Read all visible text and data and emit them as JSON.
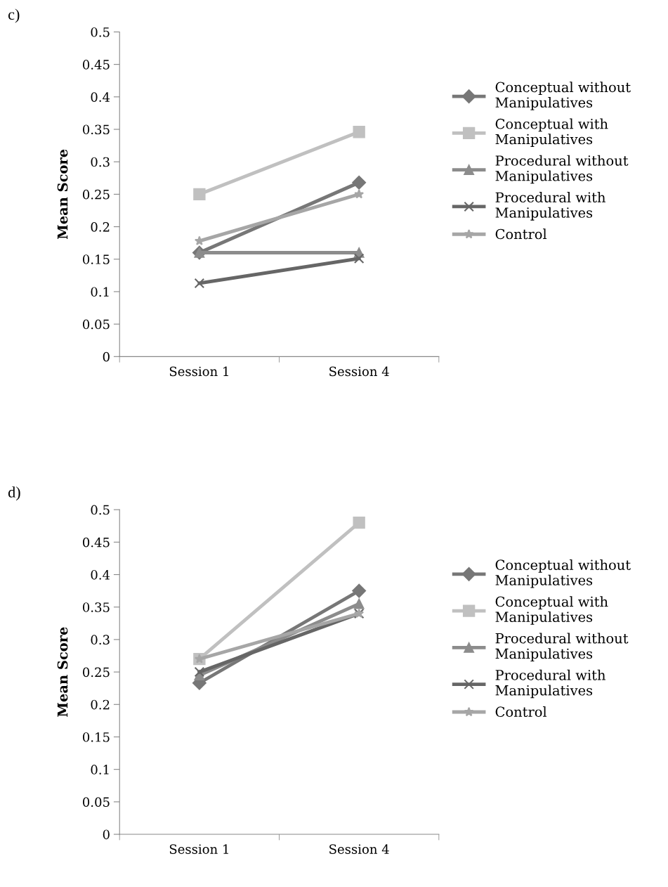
{
  "chart_data": [
    {
      "type": "line",
      "title": "c)",
      "ylabel": "Mean Score",
      "categories": [
        "Session 1",
        "Session 4"
      ],
      "ylim": [
        0,
        0.5
      ],
      "yticks": [
        0,
        0.05,
        0.1,
        0.15,
        0.2,
        0.25,
        0.3,
        0.35,
        0.4,
        0.45,
        0.5
      ],
      "grid": false,
      "legend": "right",
      "line_style": "solid",
      "series": [
        {
          "name": "Conceptual without Manipulatives",
          "color": "#777777",
          "marker": "diamond",
          "values": [
            0.16,
            0.268
          ]
        },
        {
          "name": "Conceptual with Manipulatives",
          "color": "#c0c0c0",
          "marker": "square",
          "values": [
            0.25,
            0.346
          ]
        },
        {
          "name": "Procedural without Manipulatives",
          "color": "#8c8c8c",
          "marker": "triangle",
          "values": [
            0.16,
            0.16
          ]
        },
        {
          "name": "Procedural with Manipulatives",
          "color": "#666666",
          "marker": "cross",
          "values": [
            0.113,
            0.151
          ]
        },
        {
          "name": "Control",
          "color": "#a6a6a6",
          "marker": "star",
          "values": [
            0.178,
            0.25
          ]
        }
      ]
    },
    {
      "type": "line",
      "title": "d)",
      "ylabel": "Mean Score",
      "categories": [
        "Session 1",
        "Session 4"
      ],
      "ylim": [
        0,
        0.5
      ],
      "yticks": [
        0,
        0.05,
        0.1,
        0.15,
        0.2,
        0.25,
        0.3,
        0.35,
        0.4,
        0.45,
        0.5
      ],
      "grid": false,
      "legend": "right",
      "line_style": "solid",
      "series": [
        {
          "name": "Conceptual without Manipulatives",
          "color": "#777777",
          "marker": "diamond",
          "values": [
            0.233,
            0.375
          ]
        },
        {
          "name": "Conceptual with Manipulatives",
          "color": "#c0c0c0",
          "marker": "square",
          "values": [
            0.27,
            0.48
          ]
        },
        {
          "name": "Procedural without Manipulatives",
          "color": "#8c8c8c",
          "marker": "triangle",
          "values": [
            0.245,
            0.355
          ]
        },
        {
          "name": "Procedural with Manipulatives",
          "color": "#666666",
          "marker": "cross",
          "values": [
            0.25,
            0.34
          ]
        },
        {
          "name": "Control",
          "color": "#a6a6a6",
          "marker": "star",
          "values": [
            0.27,
            0.34
          ]
        }
      ]
    }
  ]
}
